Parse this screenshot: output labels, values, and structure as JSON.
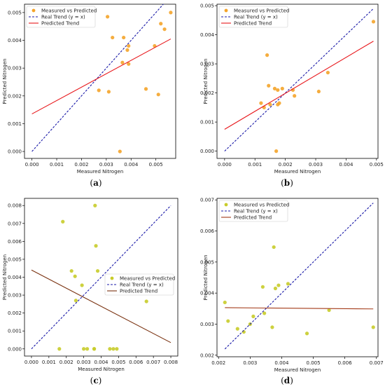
{
  "chart_data": [
    {
      "type": "scatter",
      "caption": "(a)",
      "xlabel": "Measured Nitrogen",
      "ylabel": "Predicted Nitrogen",
      "xlim": [
        -0.0003,
        0.0058
      ],
      "ylim": [
        -0.00025,
        0.0053
      ],
      "xticks": [
        "0.000",
        "0.001",
        "0.002",
        "0.003",
        "0.004",
        "0.005"
      ],
      "xtick_values": [
        0,
        0.001,
        0.002,
        0.003,
        0.004,
        0.005
      ],
      "yticks": [
        "0.000",
        "0.001",
        "0.002",
        "0.003",
        "0.004",
        "0.005"
      ],
      "ytick_values": [
        0,
        0.001,
        0.002,
        0.003,
        0.004,
        0.005
      ],
      "legend_position": "top-left",
      "series": [
        {
          "name": "Measured vs Predicted",
          "kind": "scatter",
          "color": "#f4a42a",
          "x": [
            0.0027,
            0.0031,
            0.00325,
            0.00355,
            0.00365,
            0.0037,
            0.00385,
            0.0039,
            0.0039,
            0.0046,
            0.00495,
            0.0051,
            0.0052,
            0.00535,
            0.0056,
            0.00305
          ],
          "y": [
            0.0022,
            0.00215,
            0.0041,
            0.0,
            0.0032,
            0.0041,
            0.00365,
            0.0038,
            0.00315,
            0.00225,
            0.0038,
            0.00205,
            0.0046,
            0.0044,
            0.005,
            0.00485
          ]
        },
        {
          "name": "Real Trend (y = x)",
          "kind": "line",
          "dash": true,
          "color": "#1a1aa8",
          "x": [
            0,
            0.0056
          ],
          "y": [
            0,
            0.0056
          ]
        },
        {
          "name": "Predicted Trend",
          "kind": "line",
          "dash": false,
          "color": "#e8171b",
          "x": [
            0,
            0.0056
          ],
          "y": [
            0.00135,
            0.00405
          ]
        }
      ]
    },
    {
      "type": "scatter",
      "caption": "(b)",
      "xlabel": "Measured Nitrogen",
      "ylabel": "Predicted Nitrogen",
      "xlim": [
        -0.00025,
        0.00505
      ],
      "ylim": [
        -0.00025,
        0.00505
      ],
      "xticks": [
        "0.000",
        "0.001",
        "0.002",
        "0.003",
        "0.004",
        "0.005"
      ],
      "xtick_values": [
        0,
        0.001,
        0.002,
        0.003,
        0.004,
        0.005
      ],
      "yticks": [
        "0.000",
        "0.001",
        "0.002",
        "0.003",
        "0.004",
        "0.005"
      ],
      "ytick_values": [
        0,
        0.001,
        0.002,
        0.003,
        0.004,
        0.005
      ],
      "legend_position": "top-left",
      "series": [
        {
          "name": "Measured vs Predicted",
          "kind": "scatter",
          "color": "#f4a42a",
          "x": [
            0.0012,
            0.0013,
            0.0014,
            0.00145,
            0.0015,
            0.00165,
            0.0017,
            0.00175,
            0.0018,
            0.0019,
            0.00225,
            0.0023,
            0.0031,
            0.0034,
            0.0049,
            0.00175
          ],
          "y": [
            0.00165,
            0.0015,
            0.0033,
            0.00225,
            0.0016,
            0.00215,
            0.0,
            0.0021,
            0.00165,
            0.00215,
            0.0021,
            0.0019,
            0.00205,
            0.0027,
            0.00445,
            0.0016
          ]
        },
        {
          "name": "Real Trend (y = x)",
          "kind": "line",
          "dash": true,
          "color": "#1a1aa8",
          "x": [
            0,
            0.0049
          ],
          "y": [
            0,
            0.0049
          ]
        },
        {
          "name": "Predicted Trend",
          "kind": "line",
          "dash": false,
          "color": "#e8171b",
          "x": [
            0,
            0.0049
          ],
          "y": [
            0.00075,
            0.00378
          ]
        }
      ]
    },
    {
      "type": "scatter",
      "caption": "(c)",
      "xlabel": "Measured Nitrogen",
      "ylabel": "Predicted Nitrogen",
      "xlim": [
        -0.0004,
        0.0084
      ],
      "ylim": [
        -0.0004,
        0.0084
      ],
      "xticks": [
        "0.000",
        "0.001",
        "0.002",
        "0.003",
        "0.004",
        "0.005",
        "0.006",
        "0.007",
        "0.008"
      ],
      "xtick_values": [
        0,
        0.001,
        0.002,
        0.003,
        0.004,
        0.005,
        0.006,
        0.007,
        0.008
      ],
      "yticks": [
        "0.000",
        "0.001",
        "0.002",
        "0.003",
        "0.004",
        "0.005",
        "0.006",
        "0.007",
        "0.008"
      ],
      "ytick_values": [
        0,
        0.001,
        0.002,
        0.003,
        0.004,
        0.005,
        0.006,
        0.007,
        0.008
      ],
      "legend_position": "center-right",
      "series": [
        {
          "name": "Measured vs Predicted",
          "kind": "scatter",
          "color": "#c8cc2a",
          "x": [
            0.0016,
            0.0018,
            0.0023,
            0.0025,
            0.00255,
            0.0029,
            0.003,
            0.0032,
            0.0036,
            0.00365,
            0.0037,
            0.0038,
            0.0045,
            0.0047,
            0.0049,
            0.0066,
            0.0036
          ],
          "y": [
            0.0,
            0.0071,
            0.00435,
            0.00405,
            0.0027,
            0.00355,
            0.0,
            0.0,
            0.0,
            0.008,
            0.00575,
            0.00435,
            0.0,
            0.0,
            0.0,
            0.00265,
            0.0
          ]
        },
        {
          "name": "Real Trend (y = x)",
          "kind": "line",
          "dash": true,
          "color": "#1a1aa8",
          "x": [
            0,
            0.008
          ],
          "y": [
            0,
            0.008
          ]
        },
        {
          "name": "Predicted Trend",
          "kind": "line",
          "dash": false,
          "color": "#7a3210",
          "x": [
            0,
            0.008
          ],
          "y": [
            0.0044,
            0.00035
          ]
        }
      ]
    },
    {
      "type": "scatter",
      "caption": "(d)",
      "xlabel": "Measured Nitrogen",
      "ylabel": "Predicted Nitrogen",
      "xlim": [
        0.00195,
        0.00705
      ],
      "ylim": [
        0.00195,
        0.00705
      ],
      "xticks": [
        "0.002",
        "0.003",
        "0.004",
        "0.005",
        "0.006",
        "0.007"
      ],
      "xtick_values": [
        0.002,
        0.003,
        0.004,
        0.005,
        0.006,
        0.007
      ],
      "yticks": [
        "0.002",
        "0.003",
        "0.004",
        "0.005",
        "0.006",
        "0.007"
      ],
      "ytick_values": [
        0.002,
        0.003,
        0.004,
        0.005,
        0.006,
        0.007
      ],
      "legend_position": "top-left",
      "series": [
        {
          "name": "Measured vs Predicted",
          "kind": "scatter",
          "color": "#c8cc2a",
          "x": [
            0.0022,
            0.0023,
            0.0026,
            0.0028,
            0.003,
            0.0031,
            0.0034,
            0.00345,
            0.0037,
            0.0038,
            0.0039,
            0.0042,
            0.0048,
            0.0055,
            0.0069,
            0.00375
          ],
          "y": [
            0.0037,
            0.0031,
            0.00285,
            0.00275,
            0.003,
            0.00325,
            0.0042,
            0.00335,
            0.0029,
            0.00415,
            0.00425,
            0.0043,
            0.0027,
            0.00345,
            0.0029,
            0.00548
          ]
        },
        {
          "name": "Real Trend (y = x)",
          "kind": "line",
          "dash": true,
          "color": "#1a1aa8",
          "x": [
            0.0022,
            0.0069
          ],
          "y": [
            0.0022,
            0.0069
          ]
        },
        {
          "name": "Predicted Trend",
          "kind": "line",
          "dash": false,
          "color": "#a33a18",
          "x": [
            0.0022,
            0.0069
          ],
          "y": [
            0.00353,
            0.00349
          ]
        }
      ]
    }
  ]
}
